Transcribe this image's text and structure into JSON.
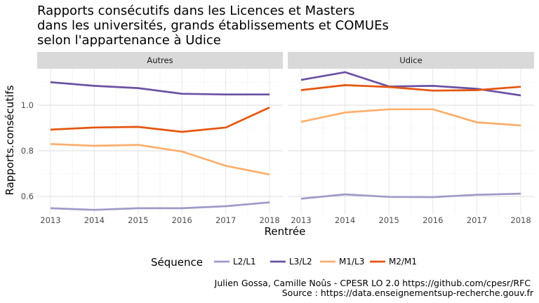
{
  "chart_data": {
    "type": "line",
    "title": [
      "Rapports consécutifs dans les Licences et Masters",
      "dans les universités, grands établissements et COMUEs",
      "selon l'appartenance à Udice"
    ],
    "xlabel": "Rentrée",
    "ylabel": "Rapports.consécutifs",
    "x": [
      "2013",
      "2014",
      "2015",
      "2016",
      "2017",
      "2018"
    ],
    "ylim": [
      0.52,
      1.16
    ],
    "yticks": [
      0.6,
      0.8,
      1.0
    ],
    "ytick_labels": [
      "0.6",
      "0.8",
      "1.0"
    ],
    "grid": true,
    "legend": {
      "title": "Séquence",
      "position": "bottom",
      "entries": [
        {
          "label": "L2/L1",
          "color": "#9e9ac8"
        },
        {
          "label": "L3/L2",
          "color": "#6a51a3"
        },
        {
          "label": "M1/L3",
          "color": "#fdae6b"
        },
        {
          "label": "M2/M1",
          "color": "#e6550d"
        }
      ]
    },
    "panels": [
      {
        "name": "Autres",
        "series": [
          {
            "name": "L2/L1",
            "values": [
              0.548,
              0.541,
              0.548,
              0.548,
              0.557,
              0.574
            ]
          },
          {
            "name": "L3/L2",
            "values": [
              1.101,
              1.085,
              1.075,
              1.05,
              1.047,
              1.047
            ]
          },
          {
            "name": "M1/L3",
            "values": [
              0.83,
              0.822,
              0.826,
              0.797,
              0.734,
              0.696
            ]
          },
          {
            "name": "M2/M1",
            "values": [
              0.893,
              0.902,
              0.905,
              0.883,
              0.902,
              0.99
            ]
          }
        ]
      },
      {
        "name": "Udice",
        "series": [
          {
            "name": "L2/L1",
            "values": [
              0.59,
              0.609,
              0.598,
              0.597,
              0.607,
              0.612
            ]
          },
          {
            "name": "L3/L2",
            "values": [
              1.111,
              1.145,
              1.082,
              1.085,
              1.072,
              1.043
            ]
          },
          {
            "name": "M1/L3",
            "values": [
              0.927,
              0.968,
              0.982,
              0.982,
              0.925,
              0.911
            ]
          },
          {
            "name": "M2/M1",
            "values": [
              1.066,
              1.088,
              1.08,
              1.064,
              1.066,
              1.081
            ]
          }
        ]
      }
    ]
  },
  "caption": [
    "Julien Gossa, Camille Noûs - CPESR LO 2.0 https://github.com/cpesr/RFC",
    "Source : https://data.enseignementsup-recherche.gouv.fr"
  ]
}
